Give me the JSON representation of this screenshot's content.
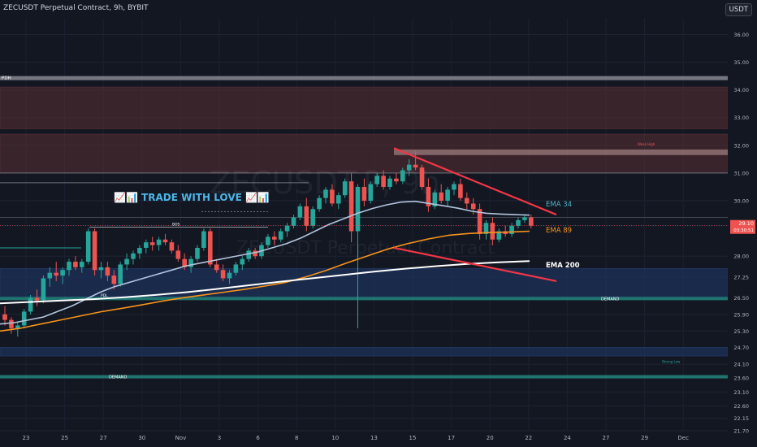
{
  "header": {
    "title": "ZECUSDT Perpetual Contract, 9h, BYBIT",
    "currency": "USDT"
  },
  "watermark": {
    "symbol": "ZECUSDT.P, 9h",
    "name": "ZECUSDT Perpetual Contract"
  },
  "annotation": {
    "text": "📈📊 TRADE WITH LOVE 📈📊"
  },
  "price_labels": {
    "last_price": "29.10",
    "countdown": "03:30:51"
  },
  "colors": {
    "background": "#131722",
    "up": "#26a69a",
    "down": "#ef5350",
    "ema34": "#b2c4de",
    "ema89": "#f7931a",
    "ema200": "#ffffff",
    "supply_zone": "#5a2f33",
    "demand_zone": "#1e3a6e",
    "wedge": "#f23645"
  },
  "chart_data": {
    "type": "candlestick",
    "title": "ZECUSDT Perpetual Contract, 9h, BYBIT",
    "ylim": [
      21.7,
      36.6
    ],
    "y_ticks": [
      "36.00",
      "35.00",
      "34.00",
      "33.00",
      "32.00",
      "31.00",
      "30.00",
      "29.10",
      "28.00",
      "27.25",
      "26.50",
      "25.90",
      "25.30",
      "24.70",
      "24.10",
      "23.60",
      "23.10",
      "22.60",
      "22.15",
      "21.70"
    ],
    "x_ticks": [
      "23",
      "25",
      "27",
      "30",
      "Nov",
      "3",
      "6",
      "8",
      "10",
      "13",
      "15",
      "17",
      "20",
      "22",
      "24",
      "27",
      "29",
      "Dec"
    ],
    "candles": [
      [
        25.9,
        26.2,
        25.5,
        25.7
      ],
      [
        25.7,
        25.8,
        25.2,
        25.4
      ],
      [
        25.4,
        25.6,
        25.1,
        25.5
      ],
      [
        25.5,
        26.1,
        25.4,
        26.0
      ],
      [
        26.0,
        26.6,
        25.9,
        26.5
      ],
      [
        26.5,
        26.8,
        26.2,
        26.4
      ],
      [
        26.4,
        27.3,
        26.3,
        27.2
      ],
      [
        27.2,
        27.6,
        26.9,
        27.4
      ],
      [
        27.4,
        27.8,
        27.1,
        27.3
      ],
      [
        27.3,
        27.6,
        27.0,
        27.5
      ],
      [
        27.5,
        27.9,
        27.3,
        27.8
      ],
      [
        27.8,
        28.0,
        27.5,
        27.6
      ],
      [
        27.6,
        27.9,
        27.4,
        27.8
      ],
      [
        27.8,
        29.0,
        27.7,
        28.9
      ],
      [
        28.9,
        29.0,
        27.3,
        27.5
      ],
      [
        27.5,
        27.8,
        27.2,
        27.6
      ],
      [
        27.6,
        27.8,
        27.1,
        27.3
      ],
      [
        27.3,
        27.5,
        26.8,
        27.0
      ],
      [
        27.0,
        27.8,
        26.9,
        27.7
      ],
      [
        27.7,
        28.1,
        27.5,
        27.9
      ],
      [
        27.9,
        28.2,
        27.7,
        28.1
      ],
      [
        28.1,
        28.4,
        27.9,
        28.3
      ],
      [
        28.3,
        28.6,
        28.1,
        28.5
      ],
      [
        28.5,
        28.7,
        28.2,
        28.4
      ],
      [
        28.4,
        28.7,
        28.2,
        28.6
      ],
      [
        28.6,
        28.8,
        28.4,
        28.5
      ],
      [
        28.5,
        28.6,
        28.1,
        28.2
      ],
      [
        28.2,
        28.4,
        27.8,
        27.9
      ],
      [
        27.9,
        28.1,
        27.5,
        27.6
      ],
      [
        27.6,
        28.0,
        27.4,
        27.9
      ],
      [
        27.9,
        28.4,
        27.8,
        28.3
      ],
      [
        28.3,
        29.0,
        28.2,
        28.9
      ],
      [
        28.9,
        29.0,
        27.6,
        27.7
      ],
      [
        27.7,
        27.9,
        27.4,
        27.5
      ],
      [
        27.5,
        27.7,
        27.1,
        27.2
      ],
      [
        27.2,
        27.5,
        27.0,
        27.4
      ],
      [
        27.4,
        27.8,
        27.3,
        27.7
      ],
      [
        27.7,
        28.0,
        27.5,
        27.9
      ],
      [
        27.9,
        28.3,
        27.8,
        28.2
      ],
      [
        28.2,
        28.3,
        27.9,
        28.0
      ],
      [
        28.0,
        28.5,
        27.9,
        28.4
      ],
      [
        28.4,
        28.8,
        28.3,
        28.7
      ],
      [
        28.7,
        28.9,
        28.4,
        28.6
      ],
      [
        28.6,
        29.0,
        28.5,
        28.9
      ],
      [
        28.9,
        29.2,
        28.7,
        29.1
      ],
      [
        29.1,
        29.5,
        29.0,
        29.4
      ],
      [
        29.4,
        29.9,
        29.3,
        29.8
      ],
      [
        29.8,
        30.1,
        28.9,
        29.1
      ],
      [
        29.1,
        29.8,
        29.0,
        29.7
      ],
      [
        29.7,
        30.2,
        29.6,
        30.1
      ],
      [
        30.1,
        30.5,
        29.9,
        30.4
      ],
      [
        30.4,
        30.6,
        29.8,
        29.9
      ],
      [
        29.9,
        30.3,
        29.7,
        30.2
      ],
      [
        30.2,
        30.8,
        30.1,
        30.7
      ],
      [
        30.7,
        31.0,
        28.5,
        28.9
      ],
      [
        28.9,
        30.6,
        25.4,
        30.5
      ],
      [
        30.5,
        30.8,
        29.8,
        30.0
      ],
      [
        30.0,
        30.7,
        29.9,
        30.6
      ],
      [
        30.6,
        31.0,
        30.5,
        30.9
      ],
      [
        30.9,
        31.1,
        30.4,
        30.5
      ],
      [
        30.5,
        30.9,
        30.4,
        30.8
      ],
      [
        30.8,
        31.0,
        30.6,
        30.7
      ],
      [
        30.7,
        31.2,
        30.6,
        31.1
      ],
      [
        31.1,
        31.5,
        30.9,
        31.3
      ],
      [
        31.3,
        31.8,
        31.1,
        31.2
      ],
      [
        31.2,
        31.3,
        30.4,
        30.5
      ],
      [
        30.5,
        30.8,
        29.6,
        29.8
      ],
      [
        29.8,
        30.4,
        29.7,
        30.3
      ],
      [
        30.3,
        30.6,
        29.9,
        30.0
      ],
      [
        30.0,
        30.5,
        29.8,
        30.4
      ],
      [
        30.4,
        30.7,
        30.2,
        30.6
      ],
      [
        30.6,
        30.8,
        30.0,
        30.1
      ],
      [
        30.1,
        30.3,
        29.7,
        29.9
      ],
      [
        29.9,
        30.1,
        29.5,
        29.7
      ],
      [
        29.7,
        29.9,
        28.6,
        28.8
      ],
      [
        28.8,
        29.3,
        28.6,
        29.2
      ],
      [
        29.2,
        29.4,
        28.4,
        28.6
      ],
      [
        28.6,
        29.0,
        28.5,
        28.9
      ],
      [
        28.9,
        29.1,
        28.7,
        28.8
      ],
      [
        28.8,
        29.2,
        28.7,
        29.1
      ],
      [
        29.1,
        29.4,
        29.0,
        29.3
      ],
      [
        29.3,
        29.5,
        29.2,
        29.4
      ],
      [
        29.4,
        29.5,
        29.0,
        29.1
      ]
    ],
    "ema34": [
      25.55,
      25.6,
      25.7,
      25.8,
      26.0,
      26.2,
      26.45,
      26.7,
      26.9,
      27.05,
      27.2,
      27.35,
      27.5,
      27.65,
      27.75,
      27.85,
      27.95,
      28.05,
      28.15,
      28.3,
      28.45,
      28.65,
      28.9,
      29.15,
      29.35,
      29.55,
      29.72,
      29.85,
      29.95,
      29.98,
      29.9,
      29.82,
      29.73,
      29.62,
      29.55,
      29.52,
      29.5,
      29.48
    ],
    "ema89": [
      25.3,
      25.4,
      25.55,
      25.7,
      25.85,
      26.0,
      26.12,
      26.25,
      26.38,
      26.5,
      26.6,
      26.7,
      26.8,
      26.92,
      27.05,
      27.25,
      27.48,
      27.75,
      28.0,
      28.25,
      28.45,
      28.62,
      28.75,
      28.82,
      28.85,
      28.87,
      28.9
    ],
    "ema200": [
      26.3,
      26.35,
      26.4,
      26.45,
      26.52,
      26.6,
      26.7,
      26.82,
      26.95,
      27.08,
      27.2,
      27.32,
      27.44,
      27.55,
      27.64,
      27.72,
      27.78,
      27.82
    ],
    "ema_labels": [
      "EMA 34",
      "EMA 89",
      "EMA 200"
    ],
    "zones": [
      {
        "type": "supply",
        "from": 32.6,
        "to": 34.1
      },
      {
        "type": "supply",
        "from": 31.0,
        "to": 32.4
      },
      {
        "type": "demand",
        "from": 26.55,
        "to": 27.55
      },
      {
        "type": "demand",
        "from": 24.4,
        "to": 24.7
      }
    ],
    "zone_labels": {
      "pdh": "PDH",
      "demand_1": "DEMAND",
      "demand_2": "DEMAND",
      "pdl": "PDL",
      "bos": "BOS",
      "supply_small": "Weak High",
      "strong_low": "Strong Low"
    },
    "wedge": {
      "upper": [
        [
          27.1,
          31.9
        ],
        [
          30.8,
          29.5
        ]
      ],
      "lower": [
        [
          27.1,
          28.3
        ],
        [
          30.8,
          27.1
        ]
      ]
    }
  }
}
